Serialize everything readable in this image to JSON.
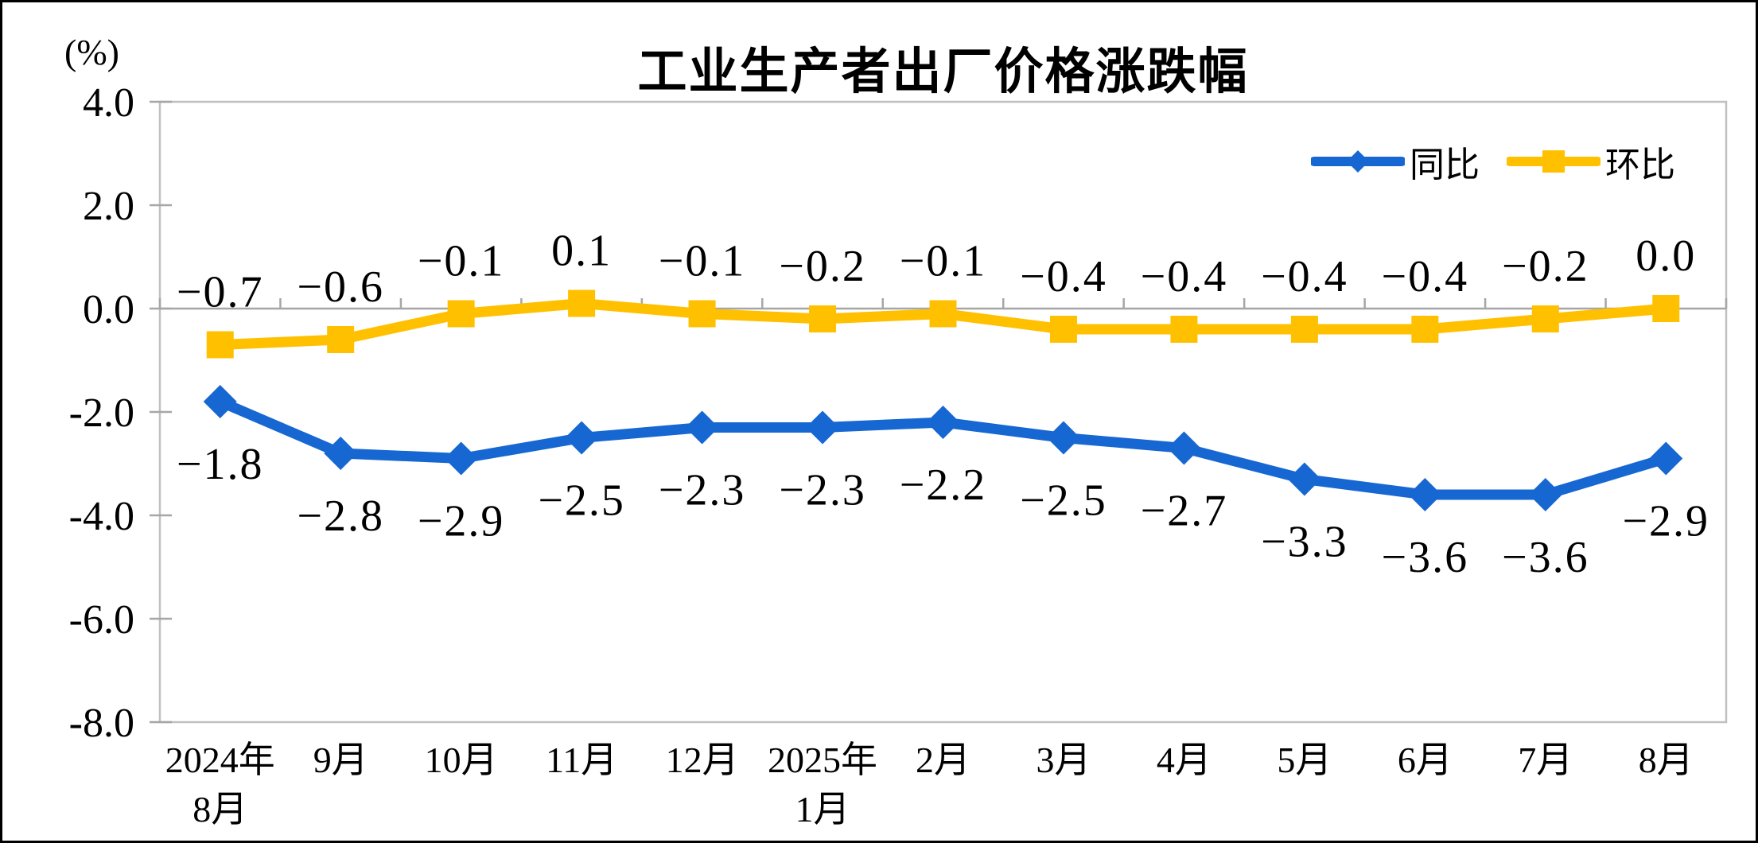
{
  "chart_data": {
    "type": "line",
    "title": "工业生产者出厂价格涨跌幅",
    "unit_label": "(%)",
    "ylim": [
      -8.0,
      4.0
    ],
    "y_tick_step": 2.0,
    "y_ticks": [
      "4.0",
      "2.0",
      "0.0",
      "-2.0",
      "-4.0",
      "-6.0",
      "-8.0"
    ],
    "grid": "zero-line-only",
    "legend_position": "top-right",
    "categories": [
      [
        "2024年",
        "8月"
      ],
      [
        "9月"
      ],
      [
        "10月"
      ],
      [
        "11月"
      ],
      [
        "12月"
      ],
      [
        "2025年",
        "1月"
      ],
      [
        "2月"
      ],
      [
        "3月"
      ],
      [
        "4月"
      ],
      [
        "5月"
      ],
      [
        "6月"
      ],
      [
        "7月"
      ],
      [
        "8月"
      ]
    ],
    "series": [
      {
        "name": "同比",
        "color": "#1767D2",
        "marker": "diamond",
        "label_side": "below",
        "values": [
          -1.8,
          -2.8,
          -2.9,
          -2.5,
          -2.3,
          -2.3,
          -2.2,
          -2.5,
          -2.7,
          -3.3,
          -3.6,
          -3.6,
          -2.9
        ],
        "labels": [
          "−1.8",
          "−2.8",
          "−2.9",
          "−2.5",
          "−2.3",
          "−2.3",
          "−2.2",
          "−2.5",
          "−2.7",
          "−3.3",
          "−3.6",
          "−3.6",
          "−2.9"
        ]
      },
      {
        "name": "环比",
        "color": "#FFC000",
        "marker": "square",
        "label_side": "above",
        "values": [
          -0.7,
          -0.6,
          -0.1,
          0.1,
          -0.1,
          -0.2,
          -0.1,
          -0.4,
          -0.4,
          -0.4,
          -0.4,
          -0.2,
          0.0
        ],
        "labels": [
          "−0.7",
          "−0.6",
          "−0.1",
          "0.1",
          "−0.1",
          "−0.2",
          "−0.1",
          "−0.4",
          "−0.4",
          "−0.4",
          "−0.4",
          "−0.2",
          "0.0"
        ]
      }
    ],
    "axis_colors": {
      "border": "#C0C0C0",
      "zero_line": "#A6A6A6",
      "tick": "#A6A6A6",
      "text": "#000000"
    }
  }
}
